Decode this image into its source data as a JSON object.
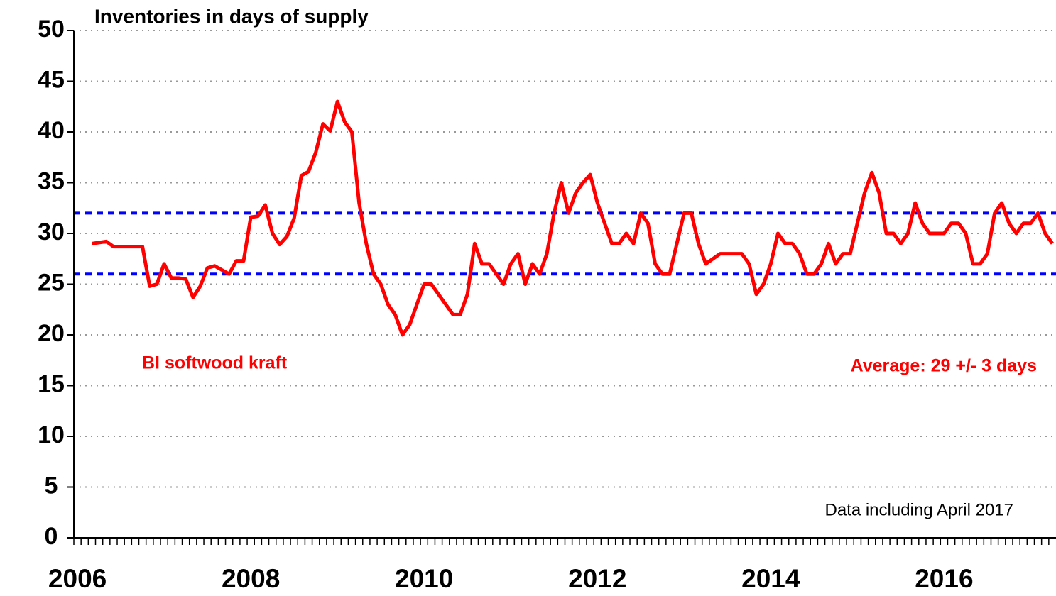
{
  "chart_data": {
    "type": "line",
    "title": "Inventories in days of supply",
    "categories": [
      "2006",
      null,
      null,
      null,
      null,
      null,
      null,
      null,
      null,
      null,
      null,
      null,
      null,
      null,
      null,
      null,
      null,
      null,
      null,
      null,
      null,
      null,
      null,
      null,
      "2008",
      null,
      null,
      null,
      null,
      null,
      null,
      null,
      null,
      null,
      null,
      null,
      null,
      null,
      null,
      null,
      null,
      null,
      null,
      null,
      null,
      null,
      null,
      null,
      "2010",
      null,
      null,
      null,
      null,
      null,
      null,
      null,
      null,
      null,
      null,
      null,
      null,
      null,
      null,
      null,
      null,
      null,
      null,
      null,
      null,
      null,
      null,
      null,
      "2012",
      null,
      null,
      null,
      null,
      null,
      null,
      null,
      null,
      null,
      null,
      null,
      null,
      null,
      null,
      null,
      null,
      null,
      null,
      null,
      null,
      null,
      null,
      null,
      "2014",
      null,
      null,
      null,
      null,
      null,
      null,
      null,
      null,
      null,
      null,
      null,
      null,
      null,
      null,
      null,
      null,
      null,
      null,
      null,
      null,
      null,
      null,
      null,
      "2016",
      null,
      null,
      null,
      null,
      null,
      null,
      null,
      null,
      null,
      null,
      null,
      null,
      null,
      null,
      null
    ],
    "series": [
      {
        "name": "BI softwood kraft",
        "color": "#ff0000",
        "values": [
          null,
          null,
          29,
          29.1,
          29.2,
          28.7,
          28.7,
          28.7,
          28.7,
          28.7,
          24.8,
          25,
          27,
          25.6,
          25.6,
          25.5,
          23.7,
          24.8,
          26.6,
          26.8,
          26.4,
          26,
          27.3,
          27.3,
          31.6,
          31.7,
          32.8,
          30,
          28.9,
          29.7,
          31.5,
          35.7,
          36.1,
          38,
          40.8,
          40.1,
          43,
          41,
          40,
          33,
          29,
          26,
          25,
          23,
          22,
          20,
          21,
          23,
          25,
          25,
          24,
          23,
          22,
          22,
          24,
          29,
          27,
          27,
          26,
          25,
          27,
          28,
          25,
          27,
          26,
          28,
          32,
          35,
          32,
          34,
          35,
          35.8,
          33,
          31,
          29,
          29,
          30,
          29,
          32,
          31,
          27,
          26,
          26,
          29,
          32,
          32,
          29,
          27,
          27.5,
          28,
          28,
          28,
          28,
          27,
          24,
          25,
          27,
          30,
          29,
          29,
          28,
          26,
          26,
          27,
          29,
          27,
          28,
          28,
          31,
          34,
          36,
          34,
          30,
          30,
          29,
          30,
          33,
          31,
          30,
          30,
          30,
          31,
          31,
          30,
          27,
          27,
          28,
          32,
          33,
          31,
          30,
          31,
          31,
          32,
          30,
          29
        ]
      }
    ],
    "reference_lines": [
      26,
      32
    ],
    "reference_color": "#0000ff",
    "annotation": "Average: 29 +/- 3 days",
    "note": "Data including April 2017",
    "ylim": [
      0,
      50
    ],
    "yticks": [
      0,
      5,
      10,
      15,
      20,
      25,
      30,
      35,
      40,
      45,
      50
    ],
    "grid": true
  }
}
